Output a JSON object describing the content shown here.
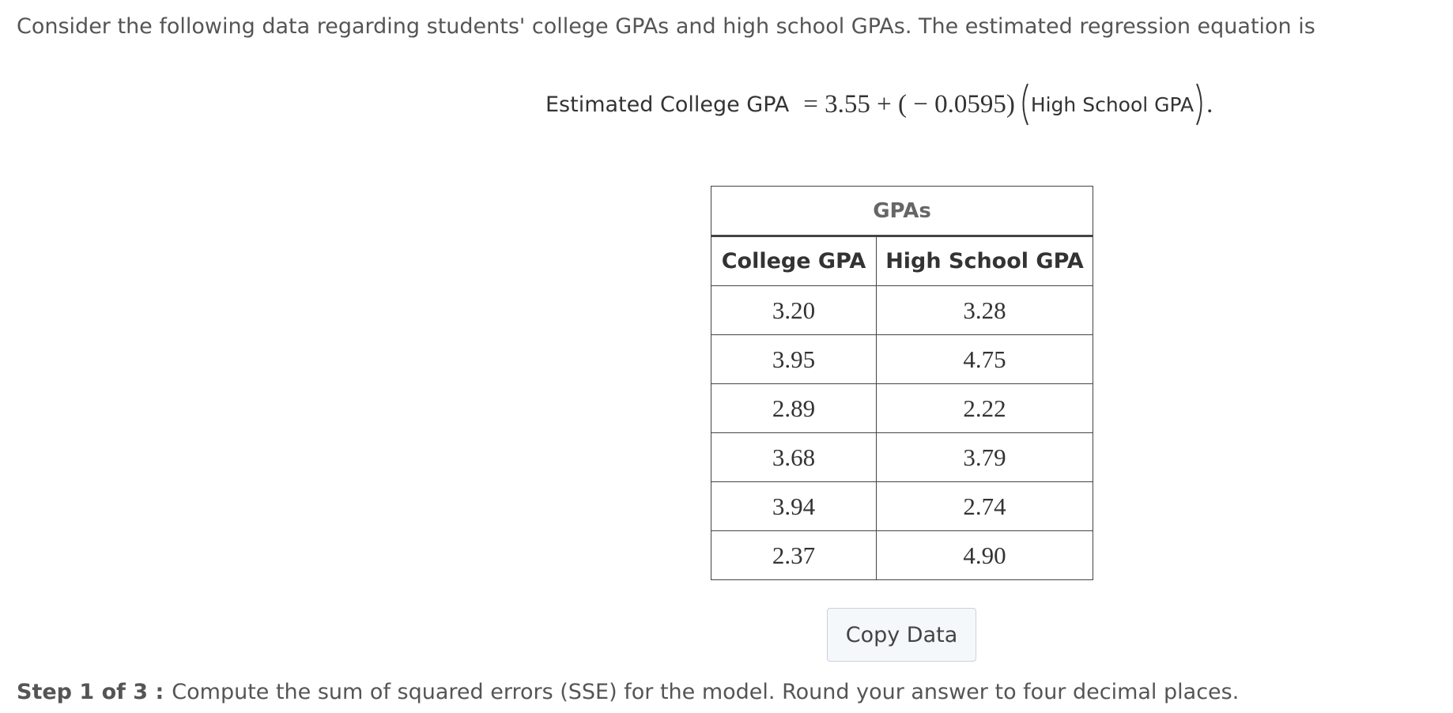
{
  "intro": "Consider the following data regarding students' college GPAs and high school GPAs. The estimated regression equation is",
  "equation": {
    "label": "Estimated College GPA",
    "formula": "= 3.55 + ( − 0.0595)",
    "variable": "High School GPA",
    "end": "."
  },
  "table": {
    "title": "GPAs",
    "headers": [
      "College GPA",
      "High School GPA"
    ],
    "rows": [
      [
        "3.20",
        "3.28"
      ],
      [
        "3.95",
        "4.75"
      ],
      [
        "2.89",
        "2.22"
      ],
      [
        "3.68",
        "3.79"
      ],
      [
        "3.94",
        "2.74"
      ],
      [
        "2.37",
        "4.90"
      ]
    ]
  },
  "button": "Copy Data",
  "step": {
    "label": "Step 1 of 3 :",
    "text": "Compute the sum of squared errors (SSE) for the model. Round your answer to four decimal places."
  }
}
